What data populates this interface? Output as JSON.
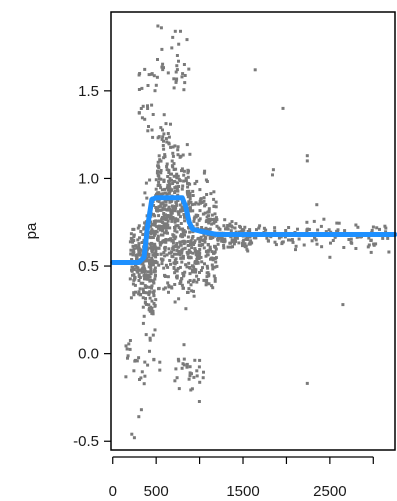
{
  "chart_data": {
    "type": "scatter",
    "xlabel": "",
    "ylabel": "pa",
    "xlim": [
      -20,
      3250
    ],
    "ylim": [
      -0.55,
      1.95
    ],
    "x_ticks": [
      0,
      500,
      1500,
      2500
    ],
    "x_tick_labels": [
      "0",
      "500",
      "1500",
      "2500"
    ],
    "x_minor_ticks": [
      1000,
      2000,
      3000
    ],
    "y_ticks": [
      -0.5,
      0.0,
      0.5,
      1.0,
      1.5
    ],
    "y_tick_labels": [
      "-0.5",
      "0.0",
      "0.5",
      "1.0",
      "1.5"
    ],
    "grid": false,
    "series": [
      {
        "kind": "points",
        "color": "#7a7a7a",
        "clusters": [
          {
            "x_range": [
              200,
              350
            ],
            "y_range": [
              0.25,
              0.8
            ],
            "count": 110
          },
          {
            "x_range": [
              350,
              500
            ],
            "y_range": [
              0.0,
              1.1
            ],
            "count": 220
          },
          {
            "x_range": [
              500,
              700
            ],
            "y_range": [
              0.2,
              1.45
            ],
            "count": 260
          },
          {
            "x_range": [
              700,
              900
            ],
            "y_range": [
              0.05,
              1.35
            ],
            "count": 230
          },
          {
            "x_range": [
              900,
              1200
            ],
            "y_range": [
              0.2,
              1.1
            ],
            "count": 230
          },
          {
            "x_range": [
              1200,
              1600
            ],
            "y_range": [
              0.55,
              0.8
            ],
            "count": 110
          },
          {
            "x_range": [
              1600,
              3200
            ],
            "y_range": [
              0.55,
              0.8
            ],
            "count": 110
          },
          {
            "x_range": [
              300,
              500
            ],
            "y_range": [
              1.1,
              1.8
            ],
            "count": 25
          },
          {
            "x_range": [
              500,
              900
            ],
            "y_range": [
              1.4,
              1.85
            ],
            "count": 30
          },
          {
            "x_range": [
              700,
              1050
            ],
            "y_range": [
              -0.3,
              0.1
            ],
            "count": 30
          },
          {
            "x_range": [
              150,
              550
            ],
            "y_range": [
              -0.3,
              0.2
            ],
            "count": 25
          }
        ],
        "outliers": [
          {
            "x": 520,
            "y": 1.87
          },
          {
            "x": 560,
            "y": 1.86
          },
          {
            "x": 720,
            "y": 1.84
          },
          {
            "x": 780,
            "y": 1.84
          },
          {
            "x": 1640,
            "y": 1.62
          },
          {
            "x": 1960,
            "y": 1.4
          },
          {
            "x": 2240,
            "y": 1.13
          },
          {
            "x": 2240,
            "y": 1.1
          },
          {
            "x": 1850,
            "y": 1.05
          },
          {
            "x": 1840,
            "y": 1.02
          },
          {
            "x": 2350,
            "y": 0.85
          },
          {
            "x": 2650,
            "y": 0.28
          },
          {
            "x": 2240,
            "y": -0.17
          },
          {
            "x": 220,
            "y": -0.46
          },
          {
            "x": 250,
            "y": -0.48
          },
          {
            "x": 330,
            "y": -0.32
          },
          {
            "x": 300,
            "y": -0.36
          },
          {
            "x": 3180,
            "y": 0.58
          },
          {
            "x": 2500,
            "y": 0.55
          },
          {
            "x": 2800,
            "y": 0.6
          }
        ]
      },
      {
        "kind": "line",
        "color": "#1e90ff",
        "x": [
          0,
          100,
          200,
          300,
          360,
          400,
          450,
          500,
          600,
          700,
          800,
          840,
          880,
          920,
          1000,
          1100,
          1200,
          1400,
          1600,
          2000,
          2500,
          3000,
          3250
        ],
        "y": [
          0.52,
          0.52,
          0.52,
          0.52,
          0.55,
          0.72,
          0.88,
          0.89,
          0.89,
          0.89,
          0.89,
          0.84,
          0.75,
          0.71,
          0.7,
          0.69,
          0.68,
          0.68,
          0.68,
          0.68,
          0.68,
          0.68,
          0.68
        ]
      }
    ]
  }
}
